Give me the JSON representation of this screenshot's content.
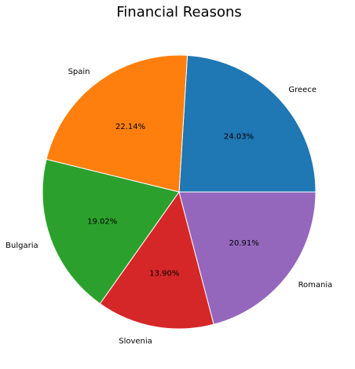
{
  "chart_data": {
    "type": "pie",
    "title": "Financial Reasons",
    "categories": [
      "Greece",
      "Spain",
      "Bulgaria",
      "Slovenia",
      "Romania"
    ],
    "values": [
      24.03,
      22.14,
      19.02,
      13.9,
      20.91
    ],
    "percent_labels": [
      "24.03%",
      "22.14%",
      "19.02%",
      "13.90%",
      "20.91%"
    ],
    "colors": [
      "#1f77b4",
      "#ff7f0e",
      "#2ca02c",
      "#d62728",
      "#9467bd"
    ],
    "start_angle": 0,
    "direction": "counterclockwise"
  }
}
